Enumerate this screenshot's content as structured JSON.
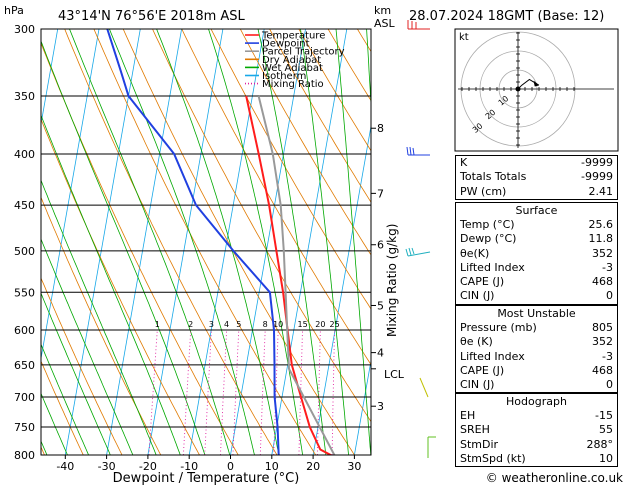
{
  "header": {
    "hpa_label": "hPa",
    "location": "43°14'N  76°56'E  2018m  ASL",
    "km_label": "km",
    "asl_label": "ASL",
    "date": "28.07.2024  18GMT  (Base: 12)"
  },
  "chart_data": {
    "type": "line",
    "title": "",
    "xlabel": "Dewpoint / Temperature (°C)",
    "ylabel": "hPa",
    "xlim": [
      -45,
      35
    ],
    "pressure_range": [
      800,
      300
    ],
    "pressure_ticks": [
      300,
      350,
      400,
      450,
      500,
      550,
      600,
      650,
      700,
      750,
      800
    ],
    "temperature_ticks": [
      -40,
      -30,
      -20,
      -10,
      0,
      10,
      20,
      30
    ],
    "km_ticks": [
      {
        "label": "8",
        "p": 377
      },
      {
        "label": "7",
        "p": 438
      },
      {
        "label": "6",
        "p": 493
      },
      {
        "label": "5",
        "p": 567
      },
      {
        "label": "4",
        "p": 632
      },
      {
        "label": "3",
        "p": 715
      }
    ],
    "lcl_label": "LCL",
    "lcl_pressure": 656,
    "mixing_ratio_axis_label": "Mixing Ratio (g/kg)",
    "mixing_ratio_values": [
      1,
      2,
      3,
      4,
      5,
      8,
      10,
      15,
      20,
      25
    ],
    "mixing_ratio_labels": [
      "1",
      "2",
      "3",
      "4",
      "5",
      "8",
      "10",
      "15",
      "20",
      "25"
    ],
    "colors": {
      "temperature": "#ff1c1c",
      "dewpoint": "#2040e0",
      "parcel": "#999999",
      "dry_adiabat": "#e07a00",
      "wet_adiabat": "#00a800",
      "isotherm": "#18a8e8",
      "mixing_ratio": "#e020a0"
    },
    "legend": {
      "placement": "top-left",
      "entries": [
        {
          "name": "Temperature",
          "color": "#ff1c1c",
          "style": "solid"
        },
        {
          "name": "Dewpoint",
          "color": "#2040e0",
          "style": "solid"
        },
        {
          "name": "Parcel Trajectory",
          "color": "#999999",
          "style": "solid"
        },
        {
          "name": "Dry Adiabat",
          "color": "#e07a00",
          "style": "solid"
        },
        {
          "name": "Wet Adiabat",
          "color": "#00a800",
          "style": "solid"
        },
        {
          "name": "Isotherm",
          "color": "#18a8e8",
          "style": "solid"
        },
        {
          "name": "Mixing Ratio",
          "color": "#e020a0",
          "style": "dotted"
        }
      ]
    },
    "series": [
      {
        "name": "Temperature",
        "points": [
          [
            805,
            25.6
          ],
          [
            790,
            21.5
          ],
          [
            750,
            18
          ],
          [
            700,
            14.6
          ],
          [
            650,
            11
          ],
          [
            600,
            8.5
          ],
          [
            550,
            5.8
          ],
          [
            500,
            2.4
          ],
          [
            450,
            -1.3
          ],
          [
            400,
            -6
          ],
          [
            350,
            -11.5
          ]
        ]
      },
      {
        "name": "Dewpoint",
        "points": [
          [
            805,
            11.8
          ],
          [
            750,
            10.2
          ],
          [
            700,
            8.2
          ],
          [
            650,
            6.8
          ],
          [
            600,
            5.2
          ],
          [
            550,
            2.6
          ],
          [
            500,
            -8
          ],
          [
            450,
            -19
          ],
          [
            400,
            -26.5
          ],
          [
            350,
            -40
          ],
          [
            330,
            -43
          ],
          [
            300,
            -48
          ]
        ]
      },
      {
        "name": "Parcel Trajectory",
        "points": [
          [
            805,
            25.6
          ],
          [
            656,
            10.5
          ],
          [
            600,
            8.4
          ],
          [
            550,
            6.4
          ],
          [
            500,
            4.2
          ],
          [
            450,
            1.5
          ],
          [
            400,
            -2.6
          ],
          [
            350,
            -8.5
          ]
        ]
      }
    ]
  },
  "hodograph": {
    "label": "kt",
    "ring_labels": [
      "10",
      "20",
      "30"
    ],
    "points": [
      [
        0,
        0
      ],
      [
        2,
        2
      ],
      [
        6,
        5
      ],
      [
        11,
        2
      ]
    ]
  },
  "info": {
    "k_label": "K",
    "k_value": "-9999",
    "tt_label": "Totals Totals",
    "tt_value": "-9999",
    "pw_label": "PW (cm)",
    "pw_value": "2.41",
    "surface": {
      "header": "Surface",
      "rows": [
        {
          "label": "Temp (°C)",
          "value": "25.6"
        },
        {
          "label": "Dewp (°C)",
          "value": "11.8"
        },
        {
          "label": "θe(K)",
          "value": "352"
        },
        {
          "label": "Lifted Index",
          "value": "-3"
        },
        {
          "label": "CAPE (J)",
          "value": "468"
        },
        {
          "label": "CIN (J)",
          "value": "0"
        }
      ]
    },
    "most_unstable": {
      "header": "Most Unstable",
      "rows": [
        {
          "label": "Pressure (mb)",
          "value": "805"
        },
        {
          "label": "θe (K)",
          "value": "352"
        },
        {
          "label": "Lifted Index",
          "value": "-3"
        },
        {
          "label": "CAPE (J)",
          "value": "468"
        },
        {
          "label": "CIN (J)",
          "value": "0"
        }
      ]
    },
    "hodograph": {
      "header": "Hodograph",
      "rows": [
        {
          "label": "EH",
          "value": "-15"
        },
        {
          "label": "SREH",
          "value": "55"
        },
        {
          "label": "StmDir",
          "value": "288°"
        },
        {
          "label": "StmSpd (kt)",
          "value": "10"
        }
      ]
    }
  },
  "footer": {
    "copyright": "© weatheronline.co.uk"
  }
}
